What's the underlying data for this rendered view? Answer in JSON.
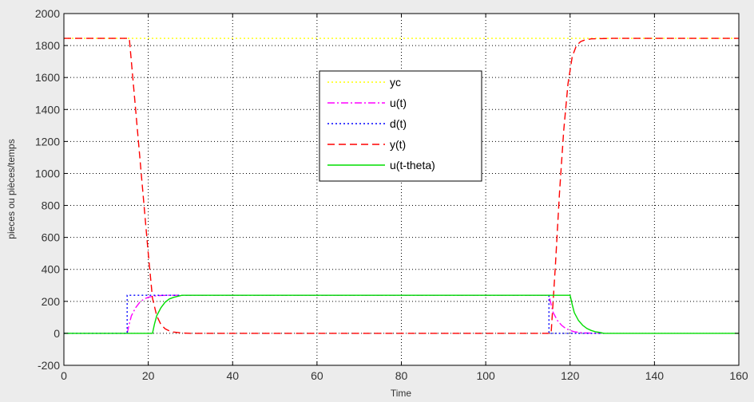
{
  "chart_data": {
    "type": "line",
    "title": "",
    "xlabel": "Time",
    "ylabel": "pieces ou pièces/temps",
    "xlim": [
      0,
      160
    ],
    "ylim": [
      -200,
      2000
    ],
    "xticks": [
      "0",
      "20",
      "40",
      "60",
      "80",
      "100",
      "120",
      "140",
      "160"
    ],
    "yticks": [
      "-200",
      "0",
      "200",
      "400",
      "600",
      "800",
      "1000",
      "1200",
      "1400",
      "1600",
      "1800",
      "2000"
    ],
    "xtick_values": [
      0,
      20,
      40,
      60,
      80,
      100,
      120,
      140,
      160
    ],
    "ytick_values": [
      -200,
      0,
      200,
      400,
      600,
      800,
      1000,
      1200,
      1400,
      1600,
      1800,
      2000
    ],
    "grid": true,
    "legend_position": "center-top",
    "series": [
      {
        "name": "yc",
        "color": "#ffff00",
        "dash": "dotted",
        "x": [
          0,
          160
        ],
        "y": [
          1845,
          1845
        ]
      },
      {
        "name": "u(t)",
        "color": "#ff00ff",
        "dash": "dashdot",
        "x": [
          15,
          15.5,
          16,
          17,
          18,
          19,
          20,
          21,
          22,
          23,
          25,
          27,
          115,
          115.5,
          116,
          117,
          118,
          119,
          120,
          121,
          122,
          123,
          125,
          127
        ],
        "y": [
          0,
          60,
          110,
          160,
          195,
          215,
          225,
          232,
          235,
          237,
          238,
          238,
          238,
          180,
          130,
          80,
          50,
          30,
          18,
          10,
          6,
          3,
          1,
          0
        ]
      },
      {
        "name": "d(t)",
        "color": "#0000ff",
        "dash": "dotted",
        "x": [
          0,
          15,
          15,
          115,
          115,
          128
        ],
        "y": [
          0,
          0,
          238,
          238,
          0,
          0
        ]
      },
      {
        "name": "y(t)",
        "color": "#ff0000",
        "dash": "dashed",
        "x": [
          0,
          15.5,
          17,
          18.5,
          20,
          21,
          22,
          23,
          24,
          25,
          26,
          28,
          30,
          115.5,
          116.5,
          117.5,
          118.5,
          119.5,
          120.5,
          121.5,
          122.5,
          123.5,
          125,
          130,
          160
        ],
        "y": [
          1845,
          1845,
          1400,
          950,
          500,
          220,
          110,
          55,
          28,
          15,
          8,
          2,
          0,
          0,
          420,
          880,
          1270,
          1560,
          1730,
          1800,
          1825,
          1835,
          1842,
          1845,
          1845
        ]
      },
      {
        "name": "u(t-theta)",
        "color": "#00dd00",
        "dash": "solid",
        "x": [
          0,
          21,
          21.5,
          22,
          23,
          24,
          25,
          26,
          27,
          28,
          120,
          120.5,
          121,
          122,
          123,
          124,
          125,
          126,
          127,
          128,
          160
        ],
        "y": [
          0,
          0,
          60,
          110,
          160,
          195,
          215,
          225,
          232,
          238,
          238,
          180,
          130,
          80,
          50,
          30,
          18,
          10,
          6,
          0,
          0
        ]
      }
    ]
  }
}
